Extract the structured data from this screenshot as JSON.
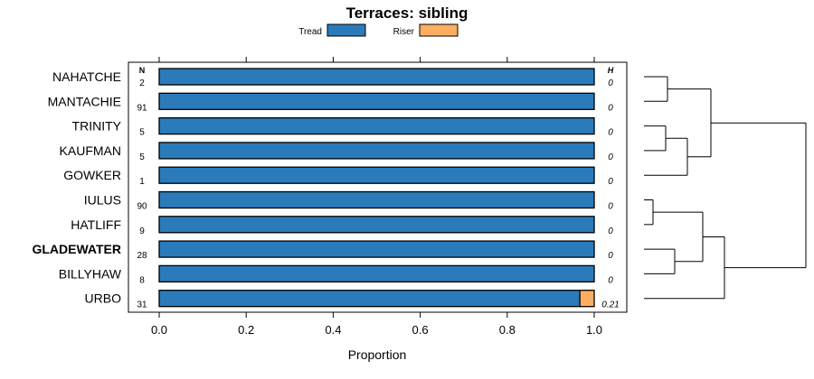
{
  "chart_data": {
    "type": "bar",
    "stacked": true,
    "orientation": "horizontal",
    "title": "Terraces: sibling",
    "xlabel": "Proportion",
    "xlim": [
      0,
      1
    ],
    "x_ticks": [
      "0.0",
      "0.2",
      "0.4",
      "0.6",
      "0.8",
      "1.0"
    ],
    "x_tick_values": [
      0,
      0.2,
      0.4,
      0.6,
      0.8,
      1.0
    ],
    "legend_position": "top",
    "series": [
      {
        "name": "Tread",
        "color": "#2b7bba"
      },
      {
        "name": "Riser",
        "color": "#fdae61"
      }
    ],
    "n_header": "N",
    "h_header": "H",
    "highlight": "GLADEWATER",
    "rows": [
      {
        "label": "NAHATCHE",
        "n": "2",
        "h": "0",
        "values": [
          1.0,
          0.0
        ]
      },
      {
        "label": "MANTACHIE",
        "n": "91",
        "h": "0",
        "values": [
          1.0,
          0.0
        ]
      },
      {
        "label": "TRINITY",
        "n": "5",
        "h": "0",
        "values": [
          1.0,
          0.0
        ]
      },
      {
        "label": "KAUFMAN",
        "n": "5",
        "h": "0",
        "values": [
          1.0,
          0.0
        ]
      },
      {
        "label": "GOWKER",
        "n": "1",
        "h": "0",
        "values": [
          1.0,
          0.0
        ]
      },
      {
        "label": "IULUS",
        "n": "90",
        "h": "0",
        "values": [
          1.0,
          0.0
        ]
      },
      {
        "label": "HATLIFF",
        "n": "9",
        "h": "0",
        "values": [
          1.0,
          0.0
        ]
      },
      {
        "label": "GLADEWATER",
        "n": "28",
        "h": "0",
        "values": [
          1.0,
          0.0
        ]
      },
      {
        "label": "BILLYHAW",
        "n": "8",
        "h": "0",
        "values": [
          1.0,
          0.0
        ]
      },
      {
        "label": "URBO",
        "n": "31",
        "h": "0.21",
        "values": [
          0.967,
          0.033
        ]
      }
    ],
    "dendrogram": true
  }
}
